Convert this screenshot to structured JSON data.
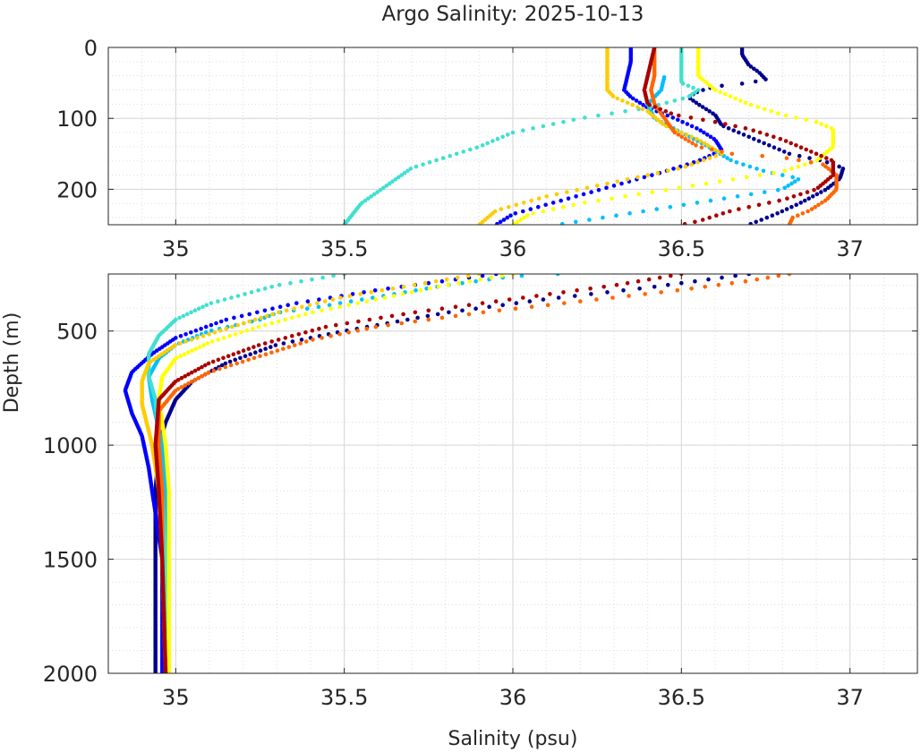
{
  "chart_data": [
    {
      "panel": "upper",
      "type": "scatter",
      "title": "Argo Salinity: 2025-10-13",
      "xlabel": "",
      "ylabel": "",
      "xlim": [
        34.8,
        37.2
      ],
      "ylim": [
        0,
        250
      ],
      "y_reversed": true,
      "grid": true,
      "minor_grid": true,
      "xticks": [
        35,
        35.5,
        36,
        36.5,
        37
      ],
      "xtick_labels": [
        "35",
        "35.5",
        "36",
        "36.5",
        "37"
      ],
      "yticks": [
        0,
        100,
        200
      ],
      "ytick_labels": [
        "0",
        "100",
        "200"
      ]
    },
    {
      "panel": "lower",
      "type": "scatter",
      "title": "",
      "xlabel": "Salinity (psu)",
      "ylabel": "Depth (m)",
      "xlim": [
        34.8,
        37.2
      ],
      "ylim": [
        250,
        2000
      ],
      "y_reversed": true,
      "grid": true,
      "minor_grid": true,
      "xticks": [
        35,
        35.5,
        36,
        36.5,
        37
      ],
      "xtick_labels": [
        "35",
        "35.5",
        "36",
        "36.5",
        "37"
      ],
      "yticks": [
        500,
        1000,
        1500,
        2000
      ],
      "ytick_labels": [
        "500",
        "1000",
        "1500",
        "2000"
      ]
    }
  ],
  "profiles": [
    {
      "color": "#00008F",
      "points": [
        [
          36.68,
          0
        ],
        [
          36.68,
          10
        ],
        [
          36.7,
          25
        ],
        [
          36.73,
          35
        ],
        [
          36.75,
          45
        ],
        [
          36.7,
          50
        ],
        [
          36.6,
          55
        ],
        [
          36.55,
          62
        ],
        [
          36.52,
          70
        ],
        [
          36.55,
          80
        ],
        [
          36.6,
          95
        ],
        [
          36.62,
          110
        ],
        [
          36.72,
          130
        ],
        [
          36.82,
          150
        ],
        [
          36.92,
          160
        ],
        [
          36.98,
          170
        ],
        [
          36.97,
          185
        ],
        [
          36.93,
          200
        ],
        [
          36.85,
          220
        ],
        [
          36.78,
          235
        ],
        [
          36.7,
          250
        ],
        [
          36.55,
          280
        ],
        [
          36.4,
          310
        ],
        [
          36.1,
          360
        ],
        [
          35.8,
          420
        ],
        [
          35.5,
          500
        ],
        [
          35.3,
          560
        ],
        [
          35.15,
          640
        ],
        [
          35.05,
          720
        ],
        [
          35.0,
          800
        ],
        [
          34.97,
          900
        ],
        [
          34.95,
          1000
        ],
        [
          34.94,
          1200
        ],
        [
          34.94,
          1400
        ],
        [
          34.94,
          1600
        ],
        [
          34.94,
          1800
        ],
        [
          34.94,
          2000
        ]
      ]
    },
    {
      "color": "#0000FF",
      "points": [
        [
          36.35,
          0
        ],
        [
          36.35,
          20
        ],
        [
          36.34,
          40
        ],
        [
          36.33,
          60
        ],
        [
          36.35,
          70
        ],
        [
          36.4,
          85
        ],
        [
          36.48,
          100
        ],
        [
          36.55,
          115
        ],
        [
          36.6,
          130
        ],
        [
          36.62,
          145
        ],
        [
          36.55,
          160
        ],
        [
          36.45,
          175
        ],
        [
          36.3,
          195
        ],
        [
          36.15,
          215
        ],
        [
          36.0,
          235
        ],
        [
          35.95,
          250
        ],
        [
          35.8,
          280
        ],
        [
          35.6,
          320
        ],
        [
          35.35,
          380
        ],
        [
          35.15,
          450
        ],
        [
          35.0,
          530
        ],
        [
          34.93,
          600
        ],
        [
          34.87,
          680
        ],
        [
          34.85,
          760
        ],
        [
          34.87,
          860
        ],
        [
          34.9,
          960
        ],
        [
          34.92,
          1100
        ],
        [
          34.94,
          1300
        ],
        [
          34.96,
          1500
        ],
        [
          34.96,
          1700
        ],
        [
          34.96,
          2000
        ]
      ]
    },
    {
      "color": "#00BFFF",
      "points": [
        [
          36.45,
          40
        ],
        [
          36.44,
          60
        ],
        [
          36.4,
          80
        ],
        [
          36.42,
          100
        ],
        [
          36.5,
          120
        ],
        [
          36.58,
          140
        ],
        [
          36.65,
          160
        ],
        [
          36.75,
          175
        ],
        [
          36.85,
          185
        ],
        [
          36.8,
          200
        ],
        [
          36.6,
          215
        ],
        [
          36.4,
          230
        ],
        [
          36.2,
          245
        ],
        [
          36.0,
          260
        ],
        [
          35.8,
          300
        ],
        [
          35.6,
          350
        ],
        [
          35.4,
          400
        ],
        [
          35.3,
          420
        ],
        [
          35.25,
          450
        ],
        [
          35.1,
          500
        ],
        [
          35.0,
          560
        ],
        [
          34.95,
          620
        ],
        [
          34.92,
          700
        ],
        [
          34.93,
          800
        ],
        [
          34.96,
          1000
        ],
        [
          34.97,
          1200
        ],
        [
          34.98,
          1500
        ],
        [
          34.98,
          2000
        ]
      ]
    },
    {
      "color": "#40E0D0",
      "points": [
        [
          36.5,
          0
        ],
        [
          36.5,
          30
        ],
        [
          36.5,
          50
        ],
        [
          36.55,
          60
        ],
        [
          36.52,
          70
        ],
        [
          36.4,
          85
        ],
        [
          36.2,
          100
        ],
        [
          36.0,
          120
        ],
        [
          35.9,
          140
        ],
        [
          35.7,
          170
        ],
        [
          35.55,
          220
        ],
        [
          35.5,
          250
        ],
        [
          35.3,
          300
        ],
        [
          35.1,
          380
        ],
        [
          35.0,
          450
        ],
        [
          34.95,
          520
        ],
        [
          34.92,
          600
        ],
        [
          34.92,
          700
        ],
        [
          34.94,
          800
        ],
        [
          34.95,
          1000
        ],
        [
          34.96,
          1200
        ],
        [
          34.97,
          1500
        ],
        [
          34.98,
          2000
        ]
      ]
    },
    {
      "color": "#FFFF00",
      "points": [
        [
          36.55,
          0
        ],
        [
          36.55,
          40
        ],
        [
          36.6,
          60
        ],
        [
          36.7,
          80
        ],
        [
          36.8,
          95
        ],
        [
          36.9,
          105
        ],
        [
          36.95,
          115
        ],
        [
          36.95,
          140
        ],
        [
          36.9,
          160
        ],
        [
          36.8,
          175
        ],
        [
          36.6,
          190
        ],
        [
          36.4,
          205
        ],
        [
          36.2,
          220
        ],
        [
          36.05,
          235
        ],
        [
          36.0,
          250
        ],
        [
          35.8,
          300
        ],
        [
          35.6,
          360
        ],
        [
          35.4,
          420
        ],
        [
          35.25,
          480
        ],
        [
          35.1,
          550
        ],
        [
          35.0,
          620
        ],
        [
          34.96,
          700
        ],
        [
          34.95,
          800
        ],
        [
          34.97,
          1000
        ],
        [
          34.98,
          1200
        ],
        [
          34.98,
          1500
        ],
        [
          34.98,
          2000
        ]
      ]
    },
    {
      "color": "#FFCC00",
      "points": [
        [
          36.28,
          0
        ],
        [
          36.28,
          20
        ],
        [
          36.28,
          40
        ],
        [
          36.28,
          60
        ],
        [
          36.3,
          70
        ],
        [
          36.35,
          80
        ],
        [
          36.4,
          90
        ],
        [
          36.45,
          110
        ],
        [
          36.55,
          130
        ],
        [
          36.62,
          150
        ],
        [
          36.5,
          170
        ],
        [
          36.3,
          190
        ],
        [
          36.1,
          210
        ],
        [
          35.95,
          230
        ],
        [
          35.9,
          250
        ],
        [
          35.7,
          300
        ],
        [
          35.5,
          350
        ],
        [
          35.3,
          420
        ],
        [
          35.15,
          490
        ],
        [
          35.0,
          560
        ],
        [
          34.92,
          640
        ],
        [
          34.9,
          720
        ],
        [
          34.9,
          820
        ],
        [
          34.93,
          1000
        ],
        [
          34.95,
          1200
        ],
        [
          34.96,
          1500
        ],
        [
          34.97,
          2000
        ]
      ]
    },
    {
      "color": "#FF6600",
      "points": [
        [
          36.42,
          0
        ],
        [
          36.42,
          20
        ],
        [
          36.42,
          40
        ],
        [
          36.41,
          60
        ],
        [
          36.42,
          80
        ],
        [
          36.45,
          100
        ],
        [
          36.48,
          120
        ],
        [
          36.55,
          140
        ],
        [
          36.65,
          150
        ],
        [
          36.8,
          155
        ],
        [
          36.92,
          165
        ],
        [
          36.96,
          180
        ],
        [
          36.96,
          200
        ],
        [
          36.93,
          215
        ],
        [
          36.88,
          230
        ],
        [
          36.83,
          240
        ],
        [
          36.82,
          250
        ],
        [
          36.7,
          280
        ],
        [
          36.5,
          320
        ],
        [
          36.2,
          370
        ],
        [
          35.9,
          420
        ],
        [
          35.6,
          480
        ],
        [
          35.4,
          540
        ],
        [
          35.25,
          610
        ],
        [
          35.1,
          680
        ],
        [
          35.0,
          760
        ],
        [
          34.95,
          850
        ],
        [
          34.95,
          1000
        ],
        [
          34.96,
          1200
        ],
        [
          34.96,
          1500
        ],
        [
          34.97,
          2000
        ]
      ]
    },
    {
      "color": "#AA0000",
      "points": [
        [
          36.42,
          0
        ],
        [
          36.41,
          20
        ],
        [
          36.4,
          40
        ],
        [
          36.39,
          60
        ],
        [
          36.4,
          80
        ],
        [
          36.48,
          95
        ],
        [
          36.6,
          105
        ],
        [
          36.7,
          115
        ],
        [
          36.8,
          130
        ],
        [
          36.9,
          150
        ],
        [
          36.95,
          160
        ],
        [
          36.95,
          180
        ],
        [
          36.9,
          200
        ],
        [
          36.8,
          215
        ],
        [
          36.65,
          230
        ],
        [
          36.55,
          245
        ],
        [
          36.5,
          250
        ],
        [
          36.3,
          300
        ],
        [
          36.0,
          360
        ],
        [
          35.7,
          420
        ],
        [
          35.45,
          480
        ],
        [
          35.25,
          560
        ],
        [
          35.1,
          640
        ],
        [
          35.0,
          720
        ],
        [
          34.95,
          800
        ],
        [
          34.94,
          1000
        ],
        [
          34.95,
          1200
        ],
        [
          34.96,
          1500
        ],
        [
          34.97,
          2000
        ]
      ]
    }
  ]
}
